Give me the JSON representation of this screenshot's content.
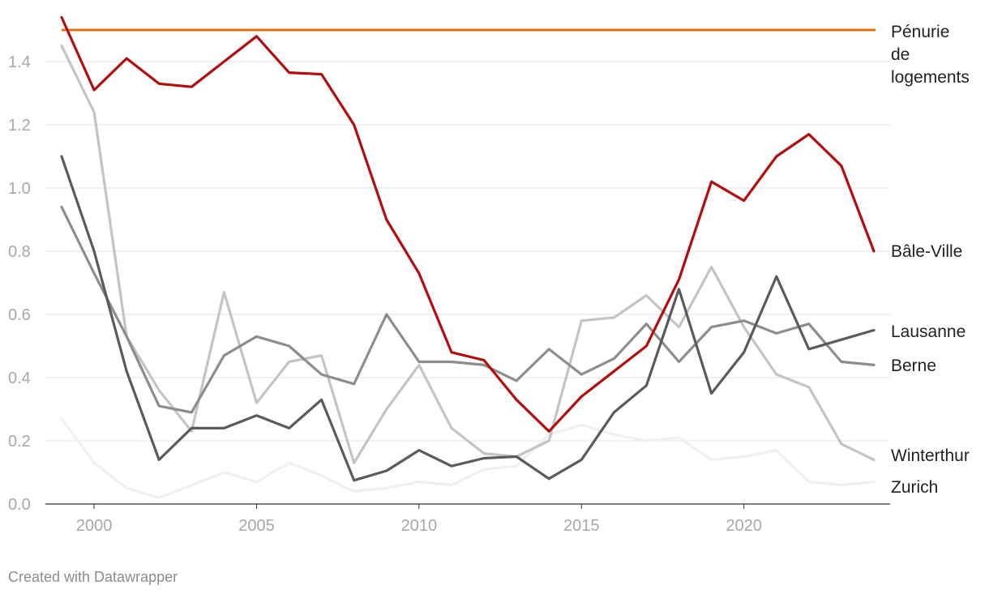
{
  "chart_data": {
    "type": "line",
    "title": "",
    "xlabel": "",
    "ylabel": "",
    "xlim": [
      1999,
      2024
    ],
    "ylim": [
      0,
      1.5
    ],
    "grid": true,
    "x_ticks": [
      2000,
      2005,
      2010,
      2015,
      2020
    ],
    "y_ticks": [
      0.0,
      0.2,
      0.4,
      0.6,
      0.8,
      1.0,
      1.2,
      1.4
    ],
    "y_tick_labels": [
      "0.0",
      "0.2",
      "0.4",
      "0.6",
      "0.8",
      "1.0",
      "1.2",
      "1.4"
    ],
    "threshold": {
      "name": "Pénurie de logements",
      "label_lines": [
        "Pénurie",
        "de",
        "logements"
      ],
      "value": 1.5,
      "color": "#e8730c"
    },
    "x": [
      1999,
      2000,
      2001,
      2002,
      2003,
      2004,
      2005,
      2006,
      2007,
      2008,
      2009,
      2010,
      2011,
      2012,
      2013,
      2014,
      2015,
      2016,
      2017,
      2018,
      2019,
      2020,
      2021,
      2022,
      2023,
      2024
    ],
    "series": [
      {
        "name": "Zurich",
        "color": "#f0f0f0",
        "values": [
          0.27,
          0.13,
          0.05,
          0.02,
          0.06,
          0.1,
          0.07,
          0.13,
          0.09,
          0.04,
          0.05,
          0.07,
          0.06,
          0.11,
          0.12,
          0.22,
          0.25,
          0.22,
          0.2,
          0.21,
          0.14,
          0.15,
          0.17,
          0.07,
          0.06,
          0.07
        ]
      },
      {
        "name": "Winterthur",
        "color": "#c4c4c4",
        "values": [
          1.45,
          1.24,
          0.53,
          0.36,
          0.23,
          0.67,
          0.32,
          0.45,
          0.47,
          0.13,
          0.3,
          0.44,
          0.24,
          0.16,
          0.15,
          0.2,
          0.58,
          0.59,
          0.66,
          0.56,
          0.75,
          0.56,
          0.41,
          0.37,
          0.19,
          0.14
        ]
      },
      {
        "name": "Berne",
        "color": "#8d8d8d",
        "values": [
          0.94,
          0.73,
          0.53,
          0.31,
          0.29,
          0.47,
          0.53,
          0.5,
          0.41,
          0.38,
          0.6,
          0.45,
          0.45,
          0.44,
          0.39,
          0.49,
          0.41,
          0.46,
          0.57,
          0.45,
          0.56,
          0.58,
          0.54,
          0.57,
          0.45,
          0.44
        ]
      },
      {
        "name": "Lausanne",
        "color": "#5b5b5b",
        "values": [
          1.1,
          0.8,
          0.42,
          0.14,
          0.24,
          0.24,
          0.28,
          0.24,
          0.33,
          0.075,
          0.105,
          0.17,
          0.12,
          0.145,
          0.15,
          0.08,
          0.14,
          0.29,
          0.375,
          0.68,
          0.35,
          0.48,
          0.72,
          0.49,
          0.52,
          0.55
        ]
      },
      {
        "name": "Bâle-Ville",
        "color": "#b30d0d",
        "values": [
          1.54,
          1.31,
          1.41,
          1.33,
          1.32,
          1.4,
          1.48,
          1.365,
          1.36,
          1.2,
          0.9,
          0.73,
          0.48,
          0.455,
          0.33,
          0.23,
          0.34,
          0.42,
          0.5,
          0.71,
          1.02,
          0.96,
          1.1,
          1.17,
          1.07,
          0.8
        ]
      }
    ]
  },
  "footer": {
    "credit": "Created with Datawrapper"
  }
}
